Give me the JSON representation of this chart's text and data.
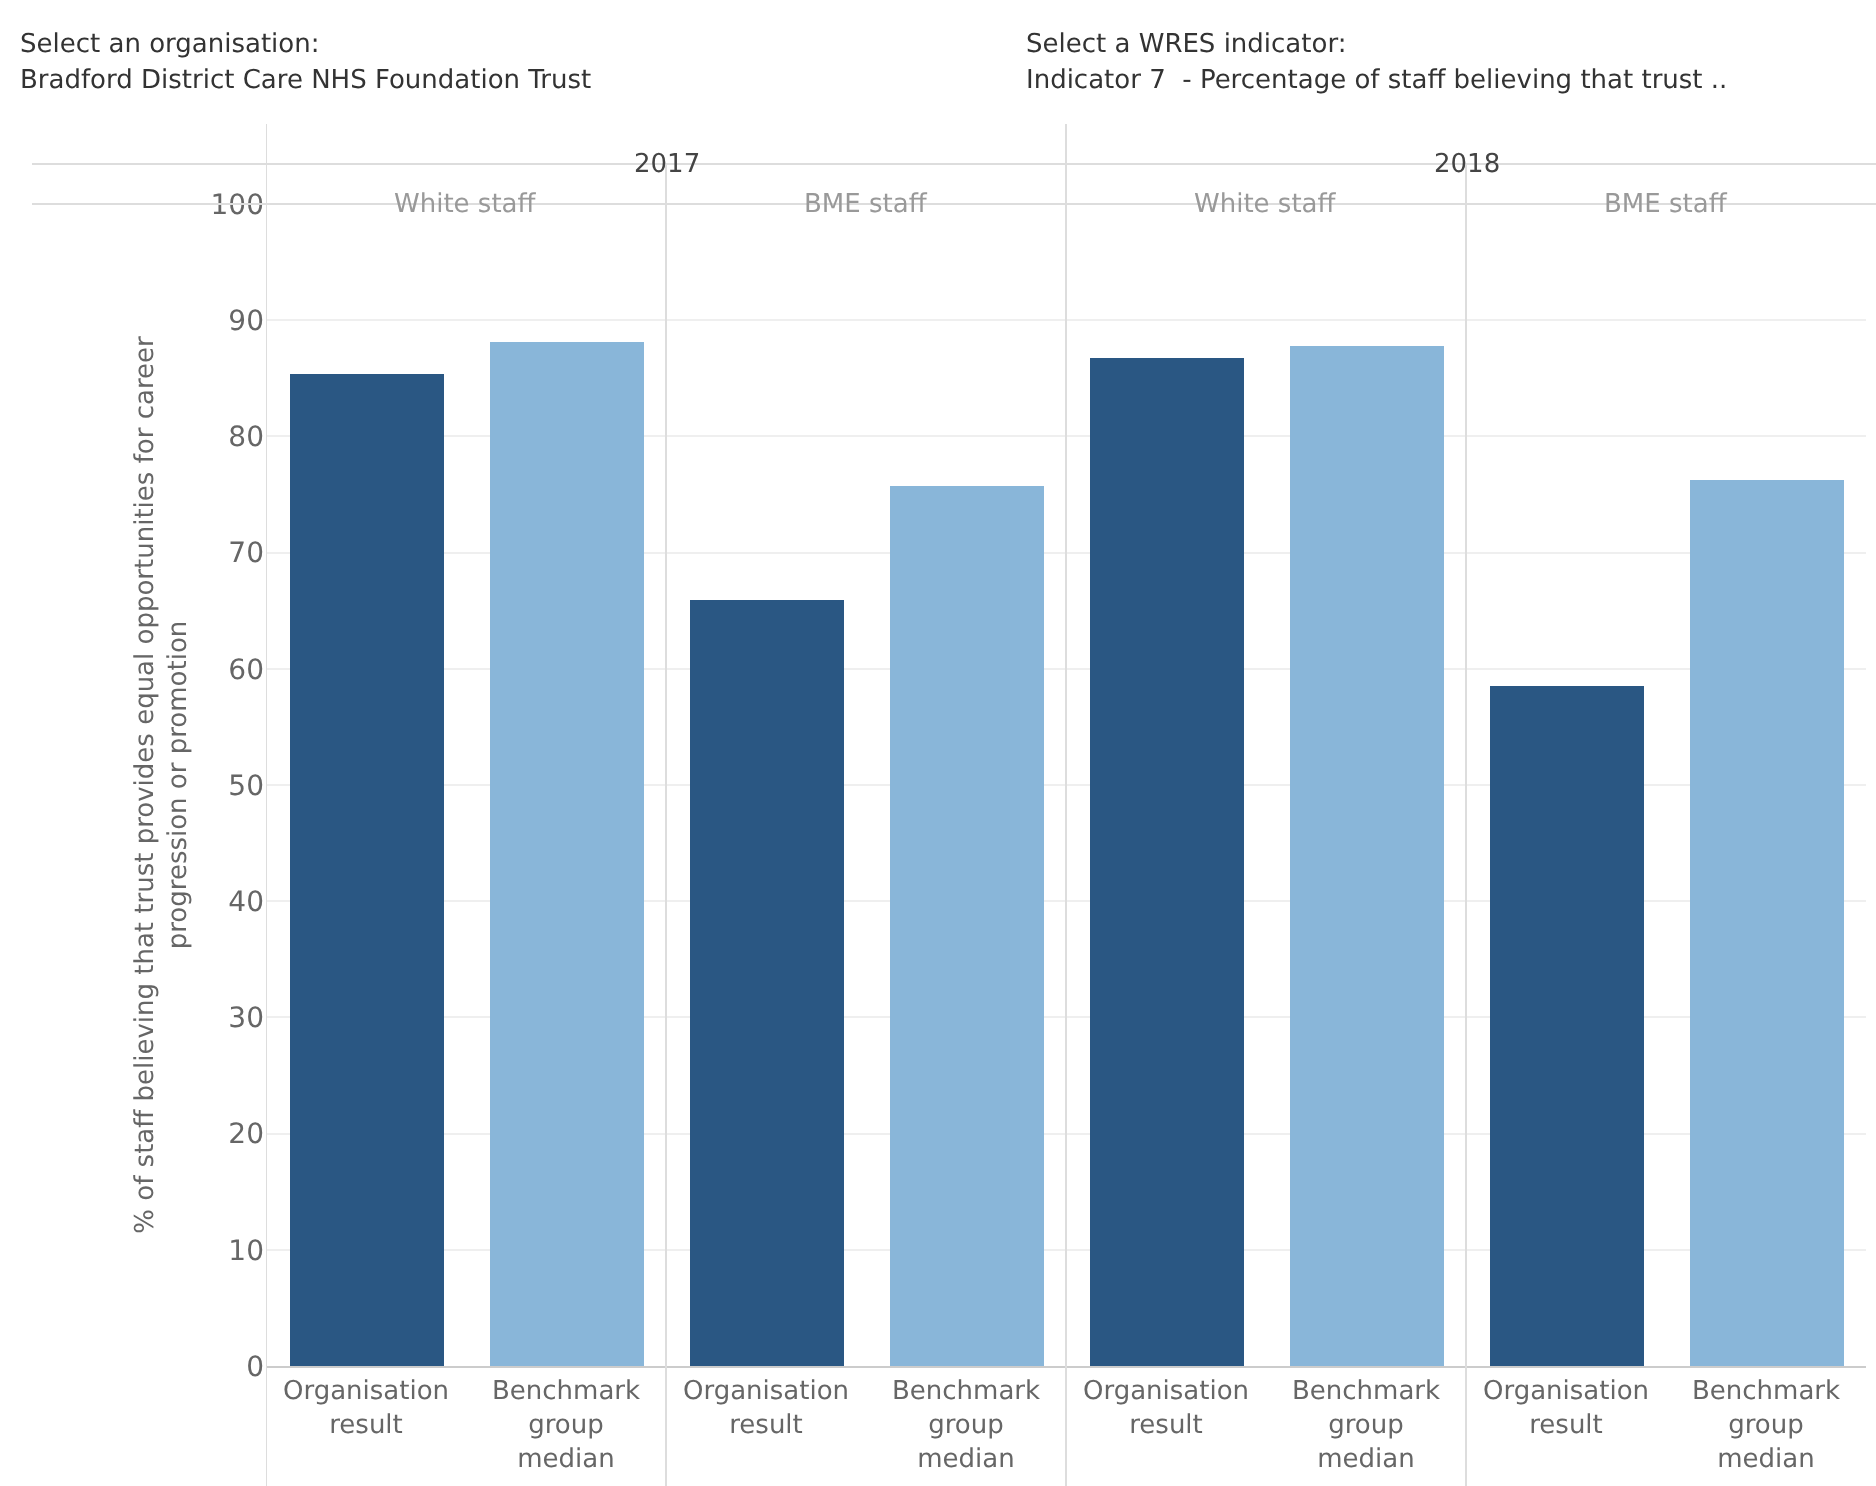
{
  "chart_data": {
    "type": "bar",
    "ylabel": "% of staff believing that trust provides equal opportunities for career progression or promotion",
    "categories": [
      "Organisation result",
      "Benchmark group median",
      "Organisation result",
      "Benchmark group median",
      "Organisation result",
      "Benchmark group median",
      "Organisation result",
      "Benchmark group median"
    ],
    "values": [
      85.3,
      88.1,
      65.9,
      75.7,
      86.7,
      87.7,
      58.5,
      76.2
    ],
    "colors": [
      "#2a5783",
      "#89b6d9",
      "#2a5783",
      "#89b6d9",
      "#2a5783",
      "#89b6d9",
      "#2a5783",
      "#89b6d9"
    ],
    "ylim": [
      0,
      100
    ],
    "yticks": [
      0,
      10,
      20,
      30,
      40,
      50,
      60,
      70,
      80,
      90,
      100
    ],
    "grid": "y",
    "legend": false,
    "annotations": [
      "Select an organisation:",
      "Bradford District Care NHS Foundation Trust",
      "Select a WRES indicator:",
      "Indicator 7  - Percentage of staff believing that trust ..",
      "2017",
      "2018",
      "White staff",
      "BME staff",
      "White staff",
      "BME staff"
    ]
  }
}
